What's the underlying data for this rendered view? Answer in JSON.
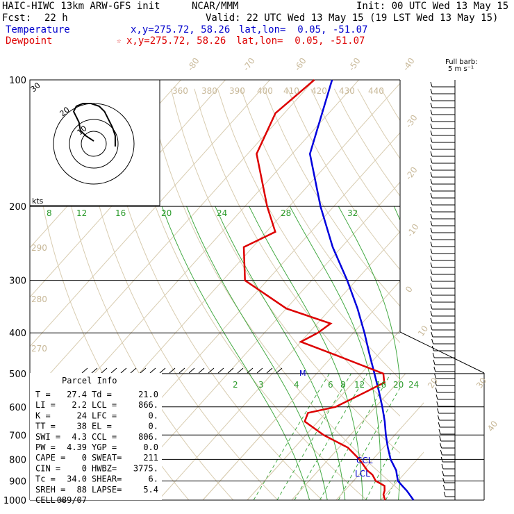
{
  "header": {
    "model": "HAIC-HIWC 13km ARW-GFS init",
    "org": "NCAR/MMM",
    "init": "Init: 00 UTC Wed 13 May 15",
    "fcst_label": "Fcst:",
    "fcst_value": "22 h",
    "valid": "Valid: 22 UTC Wed 13 May 15 (19 LST Wed 13 May 15)",
    "temp_label": "Temperature",
    "temp_xy": "x,y=275.72, 58.26",
    "temp_latlon": "lat,lon=  0.05, -51.07",
    "dew_label": "Dewpoint",
    "dew_star": "☆",
    "dew_xy": "x,y=275.72, 58.26",
    "dew_latlon": "lat,lon=  0.05, -51.07"
  },
  "barb_legend": {
    "line1": "Full barb:",
    "line2": "5 m s⁻¹"
  },
  "hodograph": {
    "units": "kts",
    "ring_labels": [
      "10",
      "20",
      "30"
    ]
  },
  "parcel": {
    "title": "Parcel Info",
    "rows": [
      [
        "T  =",
        "27.4",
        "Td =",
        "21.0"
      ],
      [
        "LI =",
        "2.2",
        "LCL =",
        "866."
      ],
      [
        "K  =",
        "24",
        "LFC =",
        "0."
      ],
      [
        "TT =",
        "38",
        "EL  =",
        "0."
      ],
      [
        "SWI =",
        "4.3",
        "CCL =",
        "806."
      ],
      [
        "PW =",
        "4.39",
        "YGP =",
        "0.0"
      ],
      [
        "CAPE =",
        "0",
        "SWEAT=",
        "211"
      ],
      [
        "CIN =",
        "0",
        "HWBZ=",
        "3775."
      ],
      [
        "Tc =",
        "34.0",
        "SHEAR=",
        "6."
      ],
      [
        "SREH =",
        "88",
        "LAPSE=",
        "5.4"
      ],
      [
        "CELL =",
        "089/07",
        "",
        ""
      ]
    ]
  },
  "markers": {
    "ccl": "CCL",
    "lcl": "LCL",
    "m": "M"
  },
  "chart_data": {
    "type": "line",
    "title": "",
    "pressure_ticks": [
      "100",
      "200",
      "300",
      "400",
      "500",
      "600",
      "700",
      "800",
      "900",
      "1000"
    ],
    "isotherm_labels": [
      "-80",
      "-70",
      "-60",
      "-50",
      "-40",
      "-30",
      "-20",
      "-10",
      "0",
      "10",
      "20",
      "30",
      "40"
    ],
    "theta_labels_top": [
      "360",
      "380",
      "390",
      "400",
      "410",
      "420",
      "430",
      "440"
    ],
    "theta_labels_left": [
      "290",
      "280",
      "270"
    ],
    "mixing_ratio_labels_upper": [
      "8",
      "12",
      "16",
      "20",
      "24",
      "28",
      "32"
    ],
    "mixing_ratio_labels_lower": [
      "2",
      "3",
      "4",
      "6",
      "8",
      "12",
      "16",
      "20",
      "24"
    ],
    "series": [
      {
        "name": "Temperature",
        "color": "#0000dd",
        "p": [
          1000,
          950,
          925,
          900,
          870,
          850,
          800,
          750,
          700,
          650,
          600,
          550,
          500,
          450,
          400,
          350,
          300,
          250,
          200,
          150,
          100
        ],
        "t": [
          27.4,
          24.0,
          22.0,
          20.0,
          18.5,
          17.5,
          14.0,
          11.0,
          8.0,
          5.0,
          1.5,
          -2.5,
          -7.0,
          -12.0,
          -17.5,
          -24.0,
          -32.0,
          -42.0,
          -53.0,
          -66.0,
          -76.0
        ]
      },
      {
        "name": "Dewpoint",
        "color": "#dd0000",
        "p": [
          1000,
          970,
          950,
          925,
          900,
          870,
          850,
          800,
          750,
          700,
          650,
          620,
          600,
          550,
          525,
          500,
          450,
          420,
          400,
          380,
          350,
          300,
          250,
          230,
          200,
          150,
          120,
          100
        ],
        "t": [
          21.0,
          19.5,
          19.0,
          18.0,
          15.0,
          13.0,
          11.0,
          7.0,
          2.0,
          -6.0,
          -13.0,
          -14.0,
          -9.0,
          -5.0,
          -3.0,
          -5.0,
          -20.0,
          -30.0,
          -28.0,
          -27.0,
          -40.0,
          -55.0,
          -62.0,
          -58.0,
          -65.0,
          -78.0,
          -82.0,
          -80.0
        ]
      }
    ],
    "hodograph_trace_kts": [
      [
        0,
        2
      ],
      [
        -6,
        6
      ],
      [
        -10,
        10
      ],
      [
        -11,
        16
      ],
      [
        -13,
        20
      ],
      [
        -15,
        24
      ],
      [
        -13,
        28
      ],
      [
        -8,
        30
      ],
      [
        -2,
        30
      ],
      [
        4,
        28
      ],
      [
        8,
        24
      ],
      [
        11,
        18
      ],
      [
        14,
        12
      ],
      [
        16,
        6
      ],
      [
        16,
        -2
      ]
    ]
  }
}
